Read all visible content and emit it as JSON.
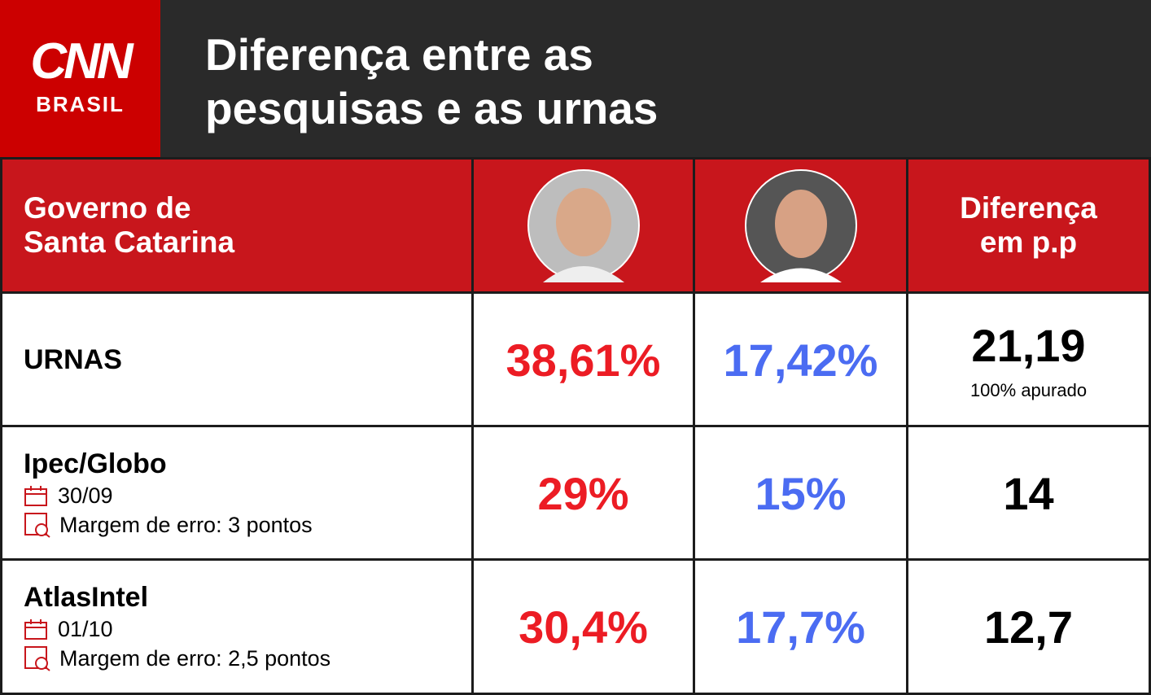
{
  "header": {
    "logo": {
      "name": "CNN",
      "sub": "BRASIL"
    },
    "title": [
      "Diferença entre as",
      "pesquisas e as urnas"
    ]
  },
  "table": {
    "columns": {
      "race": [
        "Governo de",
        "Santa Catarina"
      ],
      "difference": [
        "Diferença",
        "em p.p"
      ]
    },
    "rows": [
      {
        "label": "URNAS",
        "candidate_1": "38,61%",
        "candidate_2": "17,42%",
        "difference": "21,19",
        "note": "100% apurado"
      },
      {
        "label": "Ipec/Globo",
        "date": "30/09",
        "margin": "Margem de erro: 3 pontos",
        "candidate_1": "29%",
        "candidate_2": "15%",
        "difference": "14"
      },
      {
        "label": "AtlasIntel",
        "date": "01/10",
        "margin": "Margem de erro: 2,5 pontos",
        "candidate_1": "30,4%",
        "candidate_2": "17,7%",
        "difference": "12,7"
      }
    ]
  }
}
